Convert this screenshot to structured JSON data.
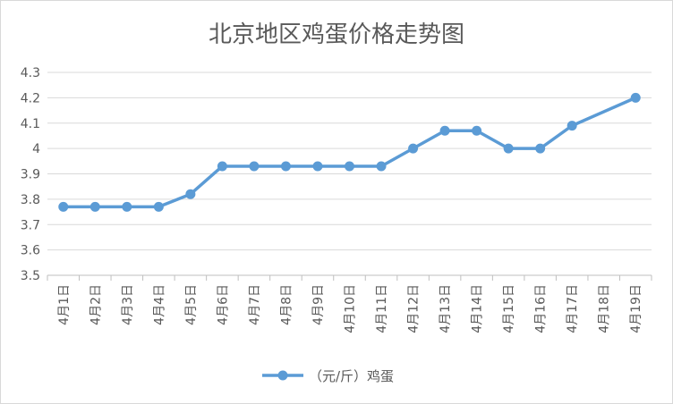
{
  "chart_data": {
    "type": "line",
    "title": "北京地区鸡蛋价格走势图",
    "xlabel": "",
    "ylabel": "",
    "ylim": [
      3.5,
      4.3
    ],
    "yticks": [
      "3.5",
      "3.6",
      "3.7",
      "3.8",
      "3.9",
      "4",
      "4.1",
      "4.2",
      "4.3"
    ],
    "grid": true,
    "legend_position": "bottom",
    "categories": [
      "4月1日",
      "4月2日",
      "4月3日",
      "4月4日",
      "4月5日",
      "4月6日",
      "4月7日",
      "4月8日",
      "4月9日",
      "4月10日",
      "4月11日",
      "4月12日",
      "4月13日",
      "4月14日",
      "4月15日",
      "4月16日",
      "4月17日",
      "4月18日",
      "4月19日"
    ],
    "series": [
      {
        "name": "（元/斤）鸡蛋",
        "color": "#5b9bd5",
        "values": [
          3.77,
          3.77,
          3.77,
          3.77,
          3.82,
          3.93,
          3.93,
          3.93,
          3.93,
          3.93,
          3.93,
          4.0,
          4.07,
          4.07,
          4.0,
          4.0,
          4.09,
          null,
          4.2
        ]
      }
    ]
  }
}
